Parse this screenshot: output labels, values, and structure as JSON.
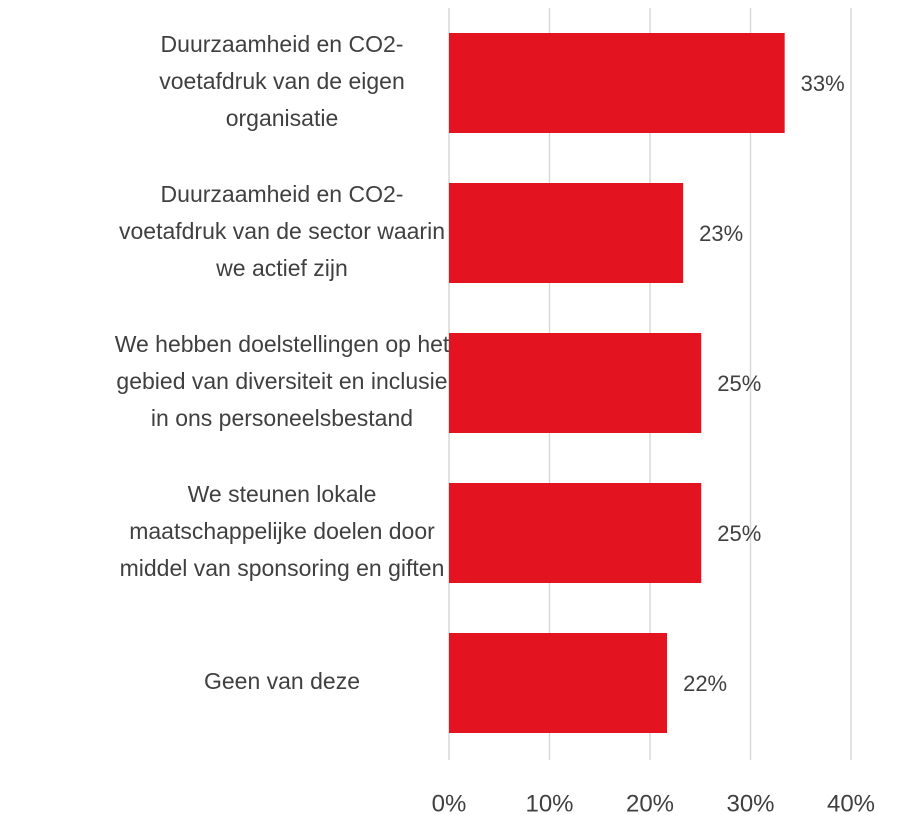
{
  "chart_data": {
    "type": "bar",
    "orientation": "horizontal",
    "categories": [
      [
        "Duurzaamheid en CO2-",
        "voetafdruk van de eigen",
        "organisatie"
      ],
      [
        "Duurzaamheid en CO2-",
        "voetafdruk van de sector waarin",
        "we actief zijn"
      ],
      [
        "We hebben doelstellingen op het",
        "gebied van diversiteit en inclusie",
        "in ons personeelsbestand"
      ],
      [
        "We steunen lokale",
        "maatschappelijke doelen door",
        "middel van sponsoring en giften"
      ],
      [
        "Geen van deze"
      ]
    ],
    "values": [
      33.4,
      23.3,
      25.1,
      25.1,
      21.7
    ],
    "value_labels": [
      "33%",
      "23%",
      "25%",
      "25%",
      "22%"
    ],
    "color": "#e3141f",
    "xlim": [
      0,
      40
    ],
    "xticks": [
      {
        "value": 0,
        "label": "0%"
      },
      {
        "value": 10,
        "label": "10%"
      },
      {
        "value": 20,
        "label": "20%"
      },
      {
        "value": 30,
        "label": "30%"
      },
      {
        "value": 40,
        "label": "40%"
      }
    ],
    "grid": true
  }
}
